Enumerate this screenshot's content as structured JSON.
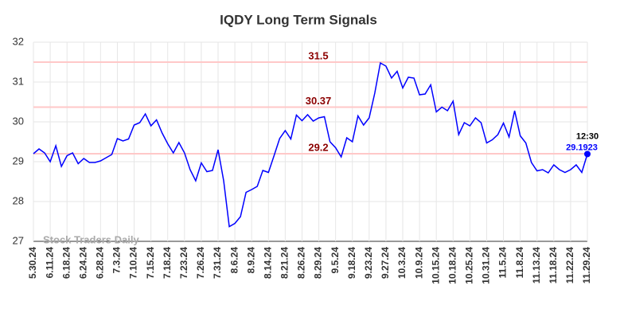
{
  "chart_data": {
    "type": "line",
    "title": "IQDY Long Term Signals",
    "categories": [
      "5.30.24",
      null,
      null,
      "6.11.24",
      null,
      null,
      "6.18.24",
      null,
      null,
      "6.24.24",
      null,
      null,
      "6.28.24",
      null,
      null,
      "7.3.24",
      null,
      null,
      "7.10.24",
      null,
      null,
      "7.15.24",
      null,
      null,
      "7.18.24",
      null,
      null,
      "7.23.24",
      null,
      null,
      "7.26.24",
      null,
      null,
      "7.31.24",
      null,
      null,
      "8.6.24",
      null,
      null,
      "8.9.24",
      null,
      null,
      "8.14.24",
      null,
      null,
      "8.21.24",
      null,
      null,
      "8.26.24",
      null,
      null,
      "8.29.24",
      null,
      null,
      "9.5.24",
      null,
      null,
      "9.18.24",
      null,
      null,
      "9.23.24",
      null,
      null,
      "9.27.24",
      null,
      null,
      "10.3.24",
      null,
      null,
      "10.9.24",
      null,
      null,
      "10.15.24",
      null,
      null,
      "10.18.24",
      null,
      null,
      "10.25.24",
      null,
      null,
      "10.31.24",
      null,
      null,
      "11.5.24",
      null,
      null,
      "11.8.24",
      null,
      null,
      "11.13.24",
      null,
      null,
      "11.18.24",
      null,
      null,
      "11.22.24",
      null,
      null,
      "11.29.24"
    ],
    "values": [
      29.2,
      29.32,
      29.22,
      29.0,
      29.4,
      28.88,
      29.15,
      29.22,
      28.95,
      29.08,
      28.98,
      28.98,
      29.02,
      29.1,
      29.18,
      29.58,
      29.52,
      29.57,
      29.92,
      29.98,
      30.2,
      29.9,
      30.05,
      29.72,
      29.45,
      29.22,
      29.48,
      29.22,
      28.8,
      28.52,
      28.97,
      28.75,
      28.78,
      29.3,
      28.52,
      27.37,
      27.45,
      27.62,
      28.23,
      28.3,
      28.38,
      28.78,
      28.73,
      29.15,
      29.58,
      29.78,
      29.57,
      30.17,
      30.03,
      30.18,
      30.02,
      30.1,
      30.13,
      29.5,
      29.35,
      29.12,
      29.6,
      29.5,
      30.15,
      29.92,
      30.1,
      30.72,
      31.48,
      31.4,
      31.1,
      31.27,
      30.85,
      31.12,
      31.1,
      30.68,
      30.7,
      30.93,
      30.25,
      30.37,
      30.28,
      30.52,
      29.68,
      29.98,
      29.9,
      30.1,
      29.98,
      29.47,
      29.55,
      29.68,
      29.97,
      29.62,
      30.28,
      29.65,
      29.47,
      28.98,
      28.77,
      28.8,
      28.72,
      28.92,
      28.8,
      28.73,
      28.8,
      28.92,
      28.73,
      29.1923
    ],
    "color": "#0000ff",
    "levels": [
      31.5,
      30.37,
      29.2
    ],
    "last_time": "12:30",
    "watermark": "Stock Traders Daily",
    "ylim": [
      27,
      32
    ],
    "yticks": [
      27,
      28,
      29,
      30,
      31,
      32
    ],
    "grid": true
  }
}
